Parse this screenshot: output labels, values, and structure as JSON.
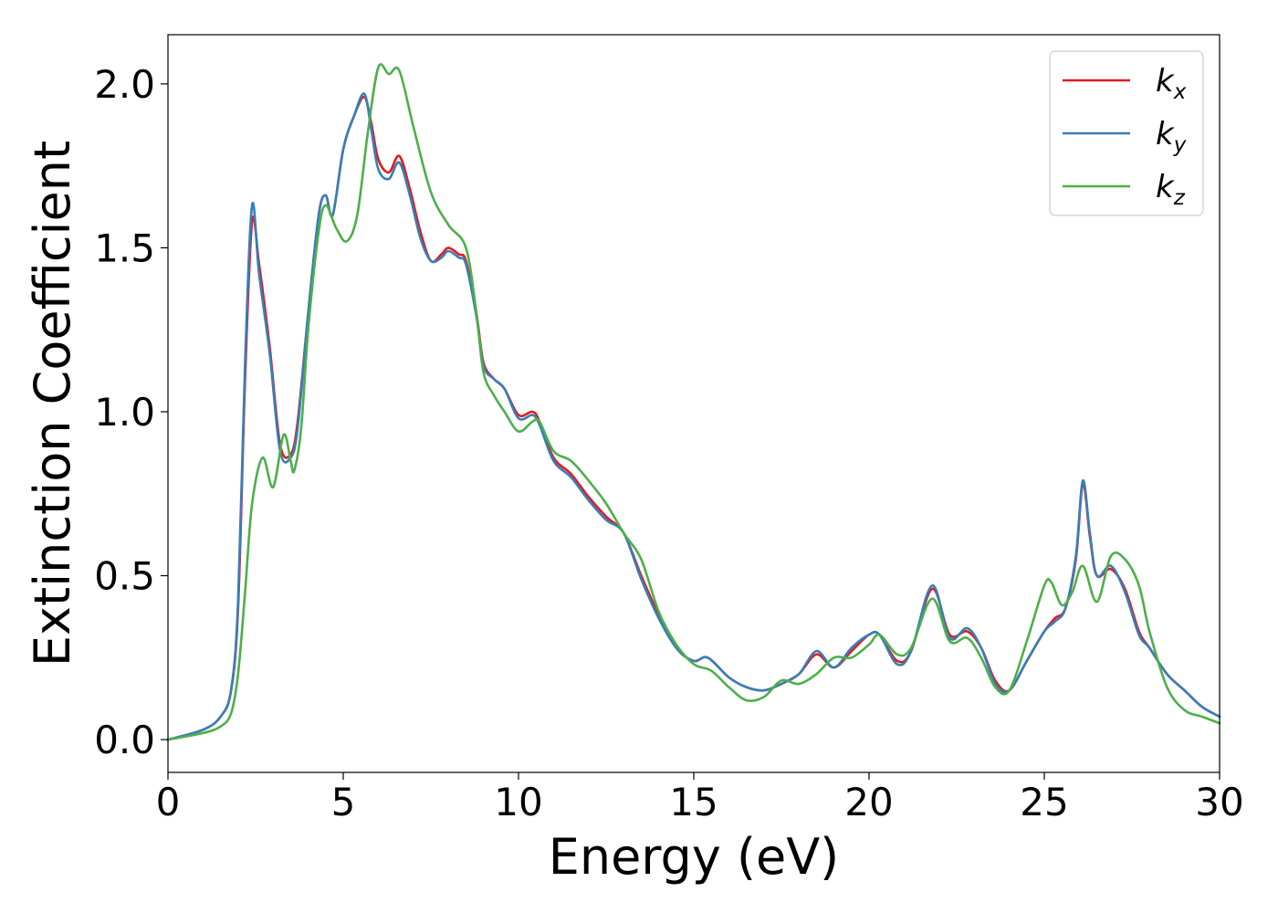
{
  "chart_data": {
    "type": "line",
    "xlabel": "Energy (eV)",
    "ylabel": "Extinction Coefficient",
    "xlim": [
      0,
      30
    ],
    "ylim": [
      -0.1,
      2.15
    ],
    "xticks": [
      "0",
      "5",
      "10",
      "15",
      "20",
      "25",
      "30"
    ],
    "yticks": [
      "0.0",
      "0.5",
      "1.0",
      "1.5",
      "2.0"
    ],
    "grid": false,
    "legend": "top-right",
    "series": [
      {
        "name": "k_x",
        "legend_main": "k",
        "legend_sub": "x",
        "color": "#e41a1c",
        "points": [
          [
            0,
            0
          ],
          [
            1,
            0.03
          ],
          [
            1.5,
            0.07
          ],
          [
            1.8,
            0.15
          ],
          [
            2.0,
            0.4
          ],
          [
            2.2,
            1.1
          ],
          [
            2.4,
            1.58
          ],
          [
            2.6,
            1.45
          ],
          [
            2.9,
            1.2
          ],
          [
            3.2,
            0.9
          ],
          [
            3.5,
            0.87
          ],
          [
            3.7,
            0.97
          ],
          [
            4.0,
            1.3
          ],
          [
            4.3,
            1.6
          ],
          [
            4.5,
            1.66
          ],
          [
            4.7,
            1.6
          ],
          [
            5.0,
            1.8
          ],
          [
            5.3,
            1.9
          ],
          [
            5.6,
            1.96
          ],
          [
            5.8,
            1.88
          ],
          [
            6.0,
            1.77
          ],
          [
            6.3,
            1.73
          ],
          [
            6.6,
            1.78
          ],
          [
            6.9,
            1.68
          ],
          [
            7.2,
            1.55
          ],
          [
            7.5,
            1.46
          ],
          [
            7.8,
            1.48
          ],
          [
            8.0,
            1.5
          ],
          [
            8.3,
            1.48
          ],
          [
            8.5,
            1.46
          ],
          [
            8.8,
            1.3
          ],
          [
            9.0,
            1.15
          ],
          [
            9.3,
            1.1
          ],
          [
            9.6,
            1.07
          ],
          [
            10.0,
            0.99
          ],
          [
            10.4,
            1.0
          ],
          [
            10.6,
            0.97
          ],
          [
            11.0,
            0.86
          ],
          [
            11.5,
            0.81
          ],
          [
            12.0,
            0.74
          ],
          [
            12.5,
            0.68
          ],
          [
            13.0,
            0.63
          ],
          [
            13.5,
            0.5
          ],
          [
            14.0,
            0.38
          ],
          [
            14.5,
            0.28
          ],
          [
            15.0,
            0.24
          ],
          [
            15.4,
            0.25
          ],
          [
            16.0,
            0.19
          ],
          [
            16.5,
            0.16
          ],
          [
            17.0,
            0.15
          ],
          [
            17.5,
            0.17
          ],
          [
            18.0,
            0.2
          ],
          [
            18.5,
            0.26
          ],
          [
            19.0,
            0.22
          ],
          [
            19.5,
            0.27
          ],
          [
            20.0,
            0.32
          ],
          [
            20.3,
            0.32
          ],
          [
            20.8,
            0.24
          ],
          [
            21.2,
            0.27
          ],
          [
            21.8,
            0.46
          ],
          [
            22.3,
            0.32
          ],
          [
            22.8,
            0.33
          ],
          [
            23.2,
            0.28
          ],
          [
            23.6,
            0.18
          ],
          [
            24.0,
            0.15
          ],
          [
            24.5,
            0.24
          ],
          [
            25.0,
            0.33
          ],
          [
            25.3,
            0.37
          ],
          [
            25.6,
            0.4
          ],
          [
            25.9,
            0.55
          ],
          [
            26.1,
            0.78
          ],
          [
            26.3,
            0.62
          ],
          [
            26.5,
            0.5
          ],
          [
            26.9,
            0.52
          ],
          [
            27.3,
            0.46
          ],
          [
            27.7,
            0.33
          ],
          [
            28.0,
            0.28
          ],
          [
            28.5,
            0.2
          ],
          [
            29.0,
            0.15
          ],
          [
            29.5,
            0.1
          ],
          [
            30.0,
            0.07
          ]
        ]
      },
      {
        "name": "k_y",
        "legend_main": "k",
        "legend_sub": "y",
        "color": "#377eb8",
        "points": [
          [
            0,
            0
          ],
          [
            1,
            0.03
          ],
          [
            1.5,
            0.07
          ],
          [
            1.8,
            0.15
          ],
          [
            2.0,
            0.42
          ],
          [
            2.2,
            1.15
          ],
          [
            2.4,
            1.63
          ],
          [
            2.6,
            1.42
          ],
          [
            2.9,
            1.18
          ],
          [
            3.2,
            0.88
          ],
          [
            3.5,
            0.86
          ],
          [
            3.7,
            0.95
          ],
          [
            4.0,
            1.3
          ],
          [
            4.3,
            1.6
          ],
          [
            4.5,
            1.66
          ],
          [
            4.7,
            1.6
          ],
          [
            5.0,
            1.8
          ],
          [
            5.3,
            1.9
          ],
          [
            5.6,
            1.97
          ],
          [
            5.8,
            1.86
          ],
          [
            6.0,
            1.74
          ],
          [
            6.3,
            1.71
          ],
          [
            6.6,
            1.76
          ],
          [
            6.9,
            1.66
          ],
          [
            7.2,
            1.53
          ],
          [
            7.5,
            1.46
          ],
          [
            7.8,
            1.47
          ],
          [
            8.0,
            1.49
          ],
          [
            8.3,
            1.47
          ],
          [
            8.5,
            1.45
          ],
          [
            8.8,
            1.29
          ],
          [
            9.0,
            1.14
          ],
          [
            9.3,
            1.1
          ],
          [
            9.6,
            1.07
          ],
          [
            10.0,
            0.98
          ],
          [
            10.4,
            0.99
          ],
          [
            10.6,
            0.96
          ],
          [
            11.0,
            0.85
          ],
          [
            11.5,
            0.8
          ],
          [
            12.0,
            0.73
          ],
          [
            12.5,
            0.67
          ],
          [
            13.0,
            0.63
          ],
          [
            13.5,
            0.49
          ],
          [
            14.0,
            0.37
          ],
          [
            14.5,
            0.28
          ],
          [
            15.0,
            0.24
          ],
          [
            15.4,
            0.25
          ],
          [
            16.0,
            0.19
          ],
          [
            16.5,
            0.16
          ],
          [
            17.0,
            0.15
          ],
          [
            17.5,
            0.17
          ],
          [
            18.0,
            0.2
          ],
          [
            18.5,
            0.27
          ],
          [
            19.0,
            0.22
          ],
          [
            19.5,
            0.28
          ],
          [
            20.0,
            0.32
          ],
          [
            20.3,
            0.32
          ],
          [
            20.8,
            0.23
          ],
          [
            21.2,
            0.27
          ],
          [
            21.8,
            0.47
          ],
          [
            22.3,
            0.31
          ],
          [
            22.8,
            0.34
          ],
          [
            23.2,
            0.28
          ],
          [
            23.6,
            0.17
          ],
          [
            24.0,
            0.15
          ],
          [
            24.5,
            0.24
          ],
          [
            25.0,
            0.33
          ],
          [
            25.3,
            0.36
          ],
          [
            25.6,
            0.4
          ],
          [
            25.9,
            0.56
          ],
          [
            26.1,
            0.79
          ],
          [
            26.3,
            0.63
          ],
          [
            26.5,
            0.5
          ],
          [
            26.9,
            0.53
          ],
          [
            27.3,
            0.45
          ],
          [
            27.7,
            0.32
          ],
          [
            28.0,
            0.28
          ],
          [
            28.5,
            0.2
          ],
          [
            29.0,
            0.15
          ],
          [
            29.5,
            0.1
          ],
          [
            30.0,
            0.07
          ]
        ]
      },
      {
        "name": "k_z",
        "legend_main": "k",
        "legend_sub": "z",
        "color": "#4daf4a",
        "points": [
          [
            0,
            0
          ],
          [
            1,
            0.02
          ],
          [
            1.5,
            0.04
          ],
          [
            1.8,
            0.08
          ],
          [
            2.0,
            0.2
          ],
          [
            2.2,
            0.45
          ],
          [
            2.4,
            0.72
          ],
          [
            2.7,
            0.86
          ],
          [
            3.0,
            0.77
          ],
          [
            3.3,
            0.93
          ],
          [
            3.5,
            0.85
          ],
          [
            3.6,
            0.82
          ],
          [
            3.8,
            0.95
          ],
          [
            4.0,
            1.25
          ],
          [
            4.3,
            1.55
          ],
          [
            4.5,
            1.63
          ],
          [
            4.8,
            1.56
          ],
          [
            5.1,
            1.52
          ],
          [
            5.4,
            1.6
          ],
          [
            5.7,
            1.85
          ],
          [
            6.0,
            2.05
          ],
          [
            6.3,
            2.03
          ],
          [
            6.6,
            2.04
          ],
          [
            7.0,
            1.87
          ],
          [
            7.5,
            1.67
          ],
          [
            8.0,
            1.57
          ],
          [
            8.5,
            1.5
          ],
          [
            8.8,
            1.3
          ],
          [
            9.0,
            1.12
          ],
          [
            9.3,
            1.05
          ],
          [
            9.6,
            1.0
          ],
          [
            10.0,
            0.94
          ],
          [
            10.4,
            0.97
          ],
          [
            10.6,
            0.97
          ],
          [
            11.0,
            0.88
          ],
          [
            11.5,
            0.85
          ],
          [
            12.0,
            0.79
          ],
          [
            12.5,
            0.72
          ],
          [
            13.0,
            0.63
          ],
          [
            13.5,
            0.55
          ],
          [
            14.0,
            0.39
          ],
          [
            14.5,
            0.29
          ],
          [
            15.0,
            0.23
          ],
          [
            15.5,
            0.21
          ],
          [
            16.0,
            0.16
          ],
          [
            16.5,
            0.12
          ],
          [
            17.0,
            0.13
          ],
          [
            17.5,
            0.18
          ],
          [
            18.0,
            0.17
          ],
          [
            18.5,
            0.2
          ],
          [
            19.0,
            0.25
          ],
          [
            19.5,
            0.25
          ],
          [
            20.0,
            0.29
          ],
          [
            20.3,
            0.32
          ],
          [
            20.8,
            0.26
          ],
          [
            21.2,
            0.28
          ],
          [
            21.8,
            0.43
          ],
          [
            22.3,
            0.3
          ],
          [
            22.8,
            0.31
          ],
          [
            23.2,
            0.25
          ],
          [
            23.6,
            0.16
          ],
          [
            24.0,
            0.15
          ],
          [
            24.5,
            0.3
          ],
          [
            25.0,
            0.47
          ],
          [
            25.2,
            0.48
          ],
          [
            25.5,
            0.41
          ],
          [
            25.8,
            0.45
          ],
          [
            26.1,
            0.53
          ],
          [
            26.5,
            0.42
          ],
          [
            26.9,
            0.56
          ],
          [
            27.3,
            0.55
          ],
          [
            27.7,
            0.47
          ],
          [
            28.0,
            0.33
          ],
          [
            28.5,
            0.16
          ],
          [
            29.0,
            0.09
          ],
          [
            29.5,
            0.07
          ],
          [
            30.0,
            0.05
          ]
        ]
      }
    ]
  }
}
